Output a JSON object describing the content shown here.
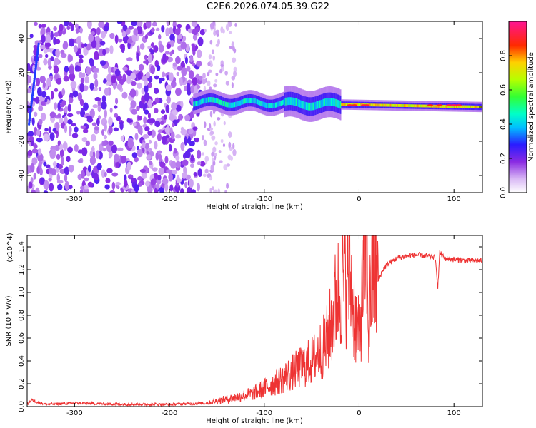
{
  "title": "C2E6.2026.074.05.39.G22",
  "colors": {
    "snr_line": "#ee3333",
    "axis": "#000000"
  },
  "chart_data": [
    {
      "type": "heatmap",
      "xlabel": "Height of straight line (km)",
      "ylabel": "Frequency (Hz)",
      "xlim": [
        -350,
        130
      ],
      "ylim": [
        -50,
        50
      ],
      "xticks": [
        -300,
        -200,
        -100,
        0,
        100
      ],
      "yticks": [
        -40,
        -20,
        0,
        20,
        40
      ],
      "colorbar": {
        "label": "Normalized spectral amplitude",
        "range": [
          0.0,
          1.0
        ],
        "ticks": [
          0.0,
          0.2,
          0.4,
          0.6,
          0.8
        ],
        "colormap": "white-purple-blue-cyan-green-yellow-red-magenta"
      },
      "regions": [
        {
          "name": "noise",
          "x_range": [
            -350,
            -165
          ],
          "freq_range": [
            -50,
            50
          ],
          "amplitude": 0.15
        },
        {
          "name": "sparse-noise",
          "x_range": [
            -165,
            -130
          ],
          "freq_range": [
            -50,
            50
          ],
          "amplitude": 0.05
        },
        {
          "name": "signal-band",
          "x_range": [
            -175,
            130
          ],
          "center_freq": 0,
          "amplitude_end": 0.95
        }
      ]
    },
    {
      "type": "line",
      "xlabel": "Height of straight line (km)",
      "ylabel": "SNR (10 * v/v)",
      "yscale_label": "(x10^4)",
      "xlim": [
        -350,
        130
      ],
      "ylim": [
        0,
        1.5
      ],
      "xticks": [
        -300,
        -200,
        -100,
        0,
        100
      ],
      "yticks": [
        0.0,
        0.2,
        0.4,
        0.6,
        0.8,
        1.0,
        1.2,
        1.4
      ],
      "series": [
        {
          "x": [
            -350,
            -345,
            -340,
            -330,
            -300,
            -250,
            -200,
            -160,
            -150,
            -130,
            -110,
            -100,
            -90,
            -80,
            -70,
            -60,
            -50,
            -40,
            -35,
            -30,
            -25,
            -20,
            -15,
            -10,
            -5,
            0,
            5,
            8,
            10,
            12,
            15,
            20,
            25,
            30,
            40,
            50,
            60,
            70,
            80,
            83,
            85,
            90,
            100,
            110,
            120,
            130
          ],
          "y": [
            0.02,
            0.06,
            0.04,
            0.02,
            0.03,
            0.02,
            0.02,
            0.03,
            0.05,
            0.08,
            0.12,
            0.16,
            0.2,
            0.25,
            0.3,
            0.35,
            0.4,
            0.5,
            0.55,
            0.7,
            0.9,
            1.05,
            1.1,
            1.15,
            0.8,
            0.6,
            1.2,
            1.5,
            0.6,
            1.0,
            1.15,
            1.1,
            1.2,
            1.25,
            1.3,
            1.32,
            1.33,
            1.32,
            1.31,
            1.05,
            1.35,
            1.3,
            1.29,
            1.28,
            1.28,
            1.28
          ]
        }
      ]
    }
  ]
}
